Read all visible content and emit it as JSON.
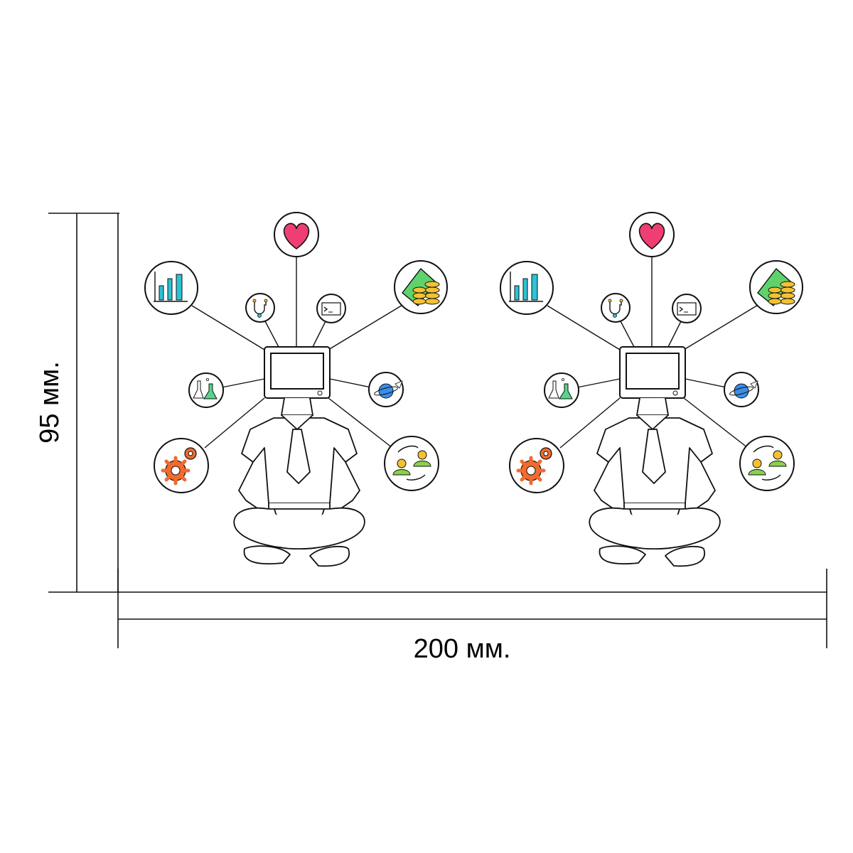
{
  "dimensions": {
    "height_label": "95 мм.",
    "width_label": "200 мм."
  },
  "illustration": {
    "figures": 2,
    "icons": [
      "heart-icon",
      "bar-chart-icon",
      "money-coins-icon",
      "stethoscope-icon",
      "terminal-icon",
      "lab-flasks-icon",
      "planet-rocket-icon",
      "gears-icon",
      "users-exchange-icon"
    ],
    "colors": {
      "heart": "#ef3f72",
      "chart": "#2cc3d6",
      "money_green": "#5fd36b",
      "coin_gold": "#f2c233",
      "flask_green": "#56d58a",
      "planet_blue": "#3a8ee8",
      "gear_orange": "#f26a2e",
      "user_yellow": "#f2c233",
      "user_green": "#8ad14a"
    }
  }
}
